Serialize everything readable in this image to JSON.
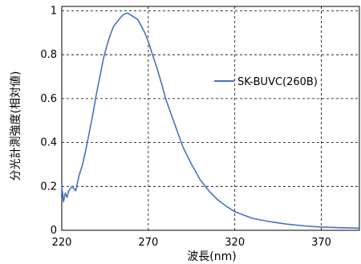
{
  "chart_data": {
    "type": "line",
    "xlabel": "波長(nm)",
    "ylabel": "分光計測強度(相対値)",
    "xlim": [
      220,
      392
    ],
    "ylim": [
      0,
      1.02
    ],
    "xticks": [
      220,
      270,
      320,
      370
    ],
    "yticks": [
      0,
      0.2,
      0.4,
      0.6,
      0.8,
      1
    ],
    "ytick_labels": [
      "0",
      "0.2",
      "0.4",
      "0.6",
      "0.8",
      "1"
    ],
    "grid": true,
    "grid_style": "dashed",
    "legend": "right",
    "line_color": "#4472C4",
    "series": [
      {
        "name": "SK-BUVC(260B)",
        "x": [
          220,
          221,
          222,
          223,
          224,
          226,
          228,
          230,
          232,
          234,
          236,
          238,
          240,
          242,
          244,
          246,
          248,
          250,
          252,
          254,
          256,
          258,
          260,
          262,
          264,
          266,
          268,
          270,
          272,
          275,
          278,
          280,
          285,
          290,
          295,
          300,
          305,
          310,
          315,
          320,
          325,
          330,
          340,
          350,
          360,
          370,
          380,
          392
        ],
        "y": [
          0.2,
          0.13,
          0.17,
          0.15,
          0.18,
          0.2,
          0.18,
          0.25,
          0.3,
          0.37,
          0.45,
          0.53,
          0.62,
          0.7,
          0.78,
          0.84,
          0.89,
          0.93,
          0.95,
          0.97,
          0.985,
          0.99,
          0.98,
          0.97,
          0.96,
          0.93,
          0.9,
          0.86,
          0.81,
          0.74,
          0.66,
          0.6,
          0.49,
          0.38,
          0.3,
          0.23,
          0.18,
          0.14,
          0.11,
          0.085,
          0.07,
          0.055,
          0.04,
          0.028,
          0.02,
          0.015,
          0.012,
          0.01
        ]
      }
    ]
  }
}
